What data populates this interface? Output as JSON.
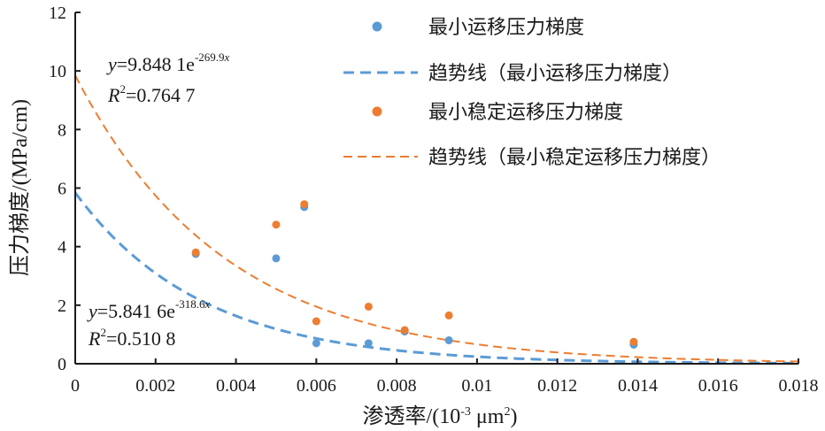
{
  "chart_data": {
    "type": "scatter",
    "title": "",
    "xlabel": "渗透率/(10",
    "xlabel_sup": "-3",
    "xlabel_tail": " μm",
    "xlabel_sup2": "2",
    "xlabel_close": ")",
    "ylabel": "压力梯度/(MPa/cm)",
    "xlim": [
      0,
      0.018
    ],
    "ylim": [
      0,
      12
    ],
    "x_ticks": [
      "0",
      "0.002",
      "0.004",
      "0.006",
      "0.008",
      "0.01",
      "0.012",
      "0.014",
      "0.016",
      "0.018"
    ],
    "y_ticks": [
      "0",
      "2",
      "4",
      "6",
      "8",
      "10",
      "12"
    ],
    "grid": false,
    "legend_position": "top-right",
    "series": [
      {
        "name": "最小运移压力梯度",
        "kind": "scatter",
        "color": "#5b9bd5",
        "points": [
          {
            "x": 0.003,
            "y": 3.75
          },
          {
            "x": 0.005,
            "y": 3.6
          },
          {
            "x": 0.0057,
            "y": 5.35
          },
          {
            "x": 0.006,
            "y": 0.7
          },
          {
            "x": 0.0073,
            "y": 0.7
          },
          {
            "x": 0.0082,
            "y": 1.1
          },
          {
            "x": 0.0093,
            "y": 0.8
          },
          {
            "x": 0.0139,
            "y": 0.65
          }
        ]
      },
      {
        "name": "趋势线（最小运移压力梯度）",
        "kind": "trend",
        "color": "#5b9bd5",
        "a": 5.8416,
        "b": -318.6,
        "x_range": [
          0,
          0.018
        ]
      },
      {
        "name": "最小稳定运移压力梯度",
        "kind": "scatter",
        "color": "#ed7d31",
        "points": [
          {
            "x": 0.003,
            "y": 3.8
          },
          {
            "x": 0.005,
            "y": 4.75
          },
          {
            "x": 0.0057,
            "y": 5.45
          },
          {
            "x": 0.006,
            "y": 1.45
          },
          {
            "x": 0.0073,
            "y": 1.95
          },
          {
            "x": 0.0082,
            "y": 1.15
          },
          {
            "x": 0.0093,
            "y": 1.65
          },
          {
            "x": 0.0139,
            "y": 0.75
          }
        ]
      },
      {
        "name": "趋势线（最小稳定运移压力梯度）",
        "kind": "trend",
        "color": "#ed7d31",
        "a": 9.8481,
        "b": -269.9,
        "x_range": [
          0,
          0.018
        ]
      }
    ],
    "annotations": [
      {
        "color": "#ed7d31",
        "eq_y": "y",
        "eq_mid": "=9.848 1e",
        "eq_exp": "-269.9",
        "eq_expvar": "x",
        "r2_R": "R",
        "r2_sup": "2",
        "r2_val": "=0.764 7"
      },
      {
        "color": "#5b9bd5",
        "eq_y": "y",
        "eq_mid": "=5.841 6e",
        "eq_exp": "-318.6",
        "eq_expvar": "x",
        "r2_R": "R",
        "r2_sup": "2",
        "r2_val": "=0.510 8"
      }
    ]
  }
}
